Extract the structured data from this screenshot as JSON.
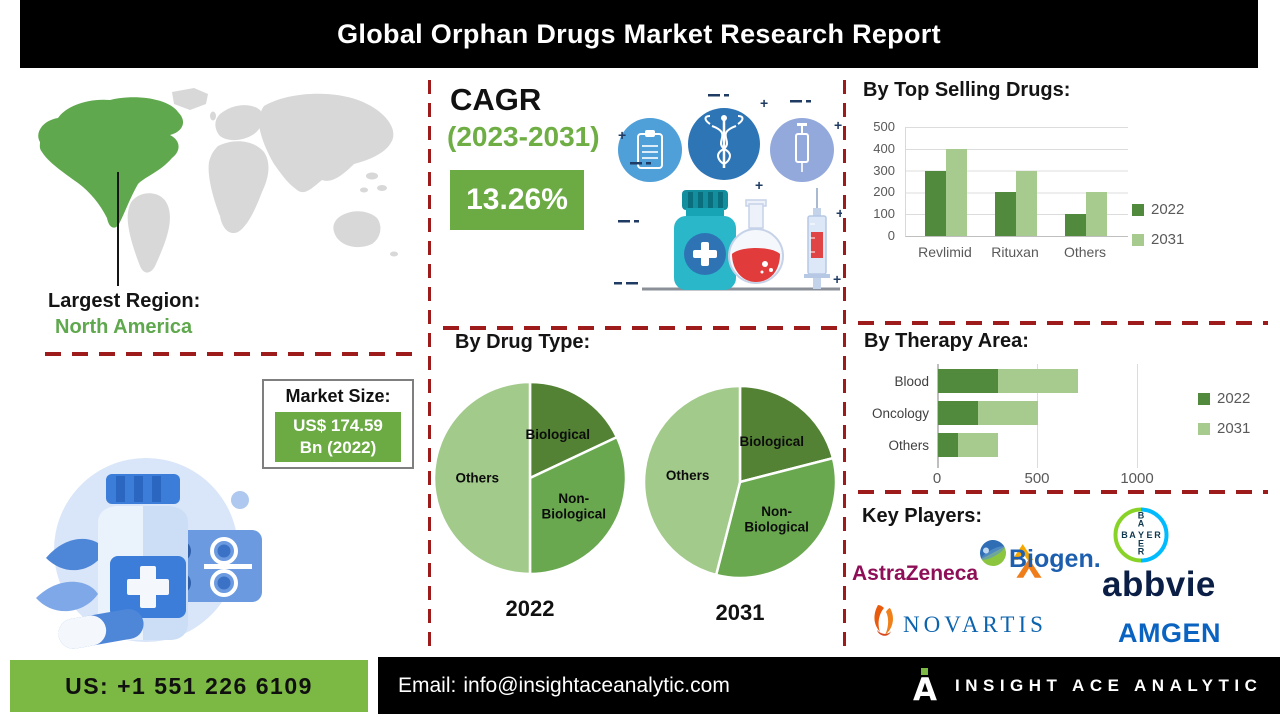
{
  "header": {
    "title": "Global Orphan Drugs Market Research Report"
  },
  "left": {
    "largest_region_label": "Largest Region:",
    "largest_region_value": "North America",
    "market_size_label": "Market Size:",
    "market_size_line1": "US$ 174.59",
    "market_size_line2": "Bn (2022)"
  },
  "cagr": {
    "label": "CAGR",
    "period": "(2023-2031)",
    "value": "13.26%"
  },
  "key_players": {
    "heading": "Key Players:",
    "astrazeneca": "AstraZeneca",
    "biogen": "Biogen.",
    "bayer": "BAYER",
    "abbvie": "abbvie",
    "novartis": "NOVARTIS",
    "amgen": "AMGEN"
  },
  "footer": {
    "phone": "US: +1 551 226 6109",
    "email_label": "Email:",
    "email": "info@insightaceanalytic.com",
    "brand": "INSIGHT ACE ANALYTIC"
  },
  "chart_data": [
    {
      "type": "bar",
      "title": "By Top Selling Drugs:",
      "categories": [
        "Revlimid",
        "Rituxan",
        "Others"
      ],
      "series": [
        {
          "name": "2022",
          "values": [
            300,
            200,
            100
          ]
        },
        {
          "name": "2031",
          "values": [
            400,
            300,
            200
          ]
        }
      ],
      "ylim": [
        0,
        500
      ],
      "yticks": [
        0,
        100,
        200,
        300,
        400,
        500
      ],
      "grid": true,
      "legend_position": "right"
    },
    {
      "type": "bar",
      "orientation": "horizontal",
      "stacked": true,
      "title": "By Therapy Area:",
      "categories": [
        "Blood",
        "Oncology",
        "Others"
      ],
      "series": [
        {
          "name": "2022",
          "values": [
            300,
            200,
            100
          ]
        },
        {
          "name": "2031",
          "values": [
            400,
            300,
            200
          ]
        }
      ],
      "totals": [
        700,
        500,
        300
      ],
      "xlim": [
        0,
        1250
      ],
      "xticks": [
        0,
        500,
        1000
      ],
      "legend_position": "right"
    },
    {
      "type": "pie",
      "title": "By Drug Type:",
      "pies": [
        {
          "label": "2022",
          "slices": [
            {
              "name": "Biological",
              "pct": 18
            },
            {
              "name": "Non-Biological",
              "pct": 32
            },
            {
              "name": "Others",
              "pct": 50
            }
          ]
        },
        {
          "label": "2031",
          "slices": [
            {
              "name": "Biological",
              "pct": 21
            },
            {
              "name": "Non-Biological",
              "pct": 33
            },
            {
              "name": "Others",
              "pct": 46
            }
          ]
        }
      ]
    }
  ],
  "colors": {
    "banner_bg": "#000000",
    "accent_green": "#6FAE44",
    "value_box_green": "#6CAB44",
    "footer_green": "#7CB944",
    "na_green": "#5FA84D",
    "map_gray": "#D8D8D8",
    "dashed_red": "#9E1B1B",
    "bar_2022": "#518A3C",
    "bar_2031": "#A7CB8E",
    "pie_biological": "#538234",
    "pie_non_biological": "#6AA850",
    "pie_others": "#A2CA8B",
    "tick_gray": "#595959",
    "grid_gray": "#DCDCDC",
    "astrazeneca_mulberry": "#8E0F57",
    "astrazeneca_gold": "#F6A800",
    "biogen_blue": "#1D5FAE",
    "bayer_navy": "#10384F",
    "bayer_green": "#89D329",
    "bayer_blue": "#00BCFF",
    "abbvie_navy": "#0A1E46",
    "novartis_blue": "#0C63AE",
    "novartis_orange": "#EC6607",
    "amgen_blue": "#0B63C1"
  }
}
